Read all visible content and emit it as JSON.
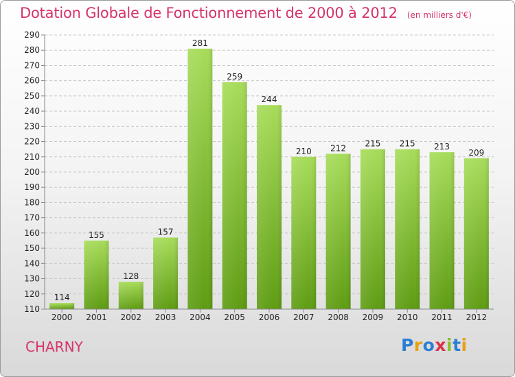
{
  "header": {
    "title": "Dotation Globale de Fonctionnement de 2000 à 2012",
    "subtitle": "(en milliers d'€)"
  },
  "footer": {
    "commune": "CHARNY",
    "logo_text": "Proxiti",
    "logo_letters": [
      {
        "ch": "P",
        "color": "#2a7fd4"
      },
      {
        "ch": "r",
        "color": "#e8a013"
      },
      {
        "ch": "o",
        "color": "#2a7fd4"
      },
      {
        "ch": "x",
        "color": "#d8334a"
      },
      {
        "ch": "i",
        "color": "#8cbe2e"
      },
      {
        "ch": "t",
        "color": "#2a7fd4"
      },
      {
        "ch": "i",
        "color": "#e8a013"
      }
    ]
  },
  "colors": {
    "accent": "#d6336c",
    "bar_light": "#a7dc5a",
    "bar_dark": "#5e9c12",
    "grid": "#c8c8c8"
  },
  "chart_data": {
    "type": "bar",
    "title": "Dotation Globale de Fonctionnement de 2000 à 2012",
    "subtitle": "(en milliers d'€)",
    "categories": [
      "2000",
      "2001",
      "2002",
      "2003",
      "2004",
      "2005",
      "2006",
      "2007",
      "2008",
      "2009",
      "2010",
      "2011",
      "2012"
    ],
    "values": [
      114,
      155,
      128,
      157,
      281,
      259,
      244,
      210,
      212,
      215,
      215,
      213,
      209
    ],
    "yticks": [
      110,
      120,
      130,
      140,
      150,
      160,
      170,
      180,
      190,
      200,
      210,
      220,
      230,
      240,
      250,
      260,
      270,
      280,
      290
    ],
    "ylim": [
      110,
      290
    ],
    "xlabel": "",
    "ylabel": "",
    "grid": true,
    "show_value_labels": true
  }
}
